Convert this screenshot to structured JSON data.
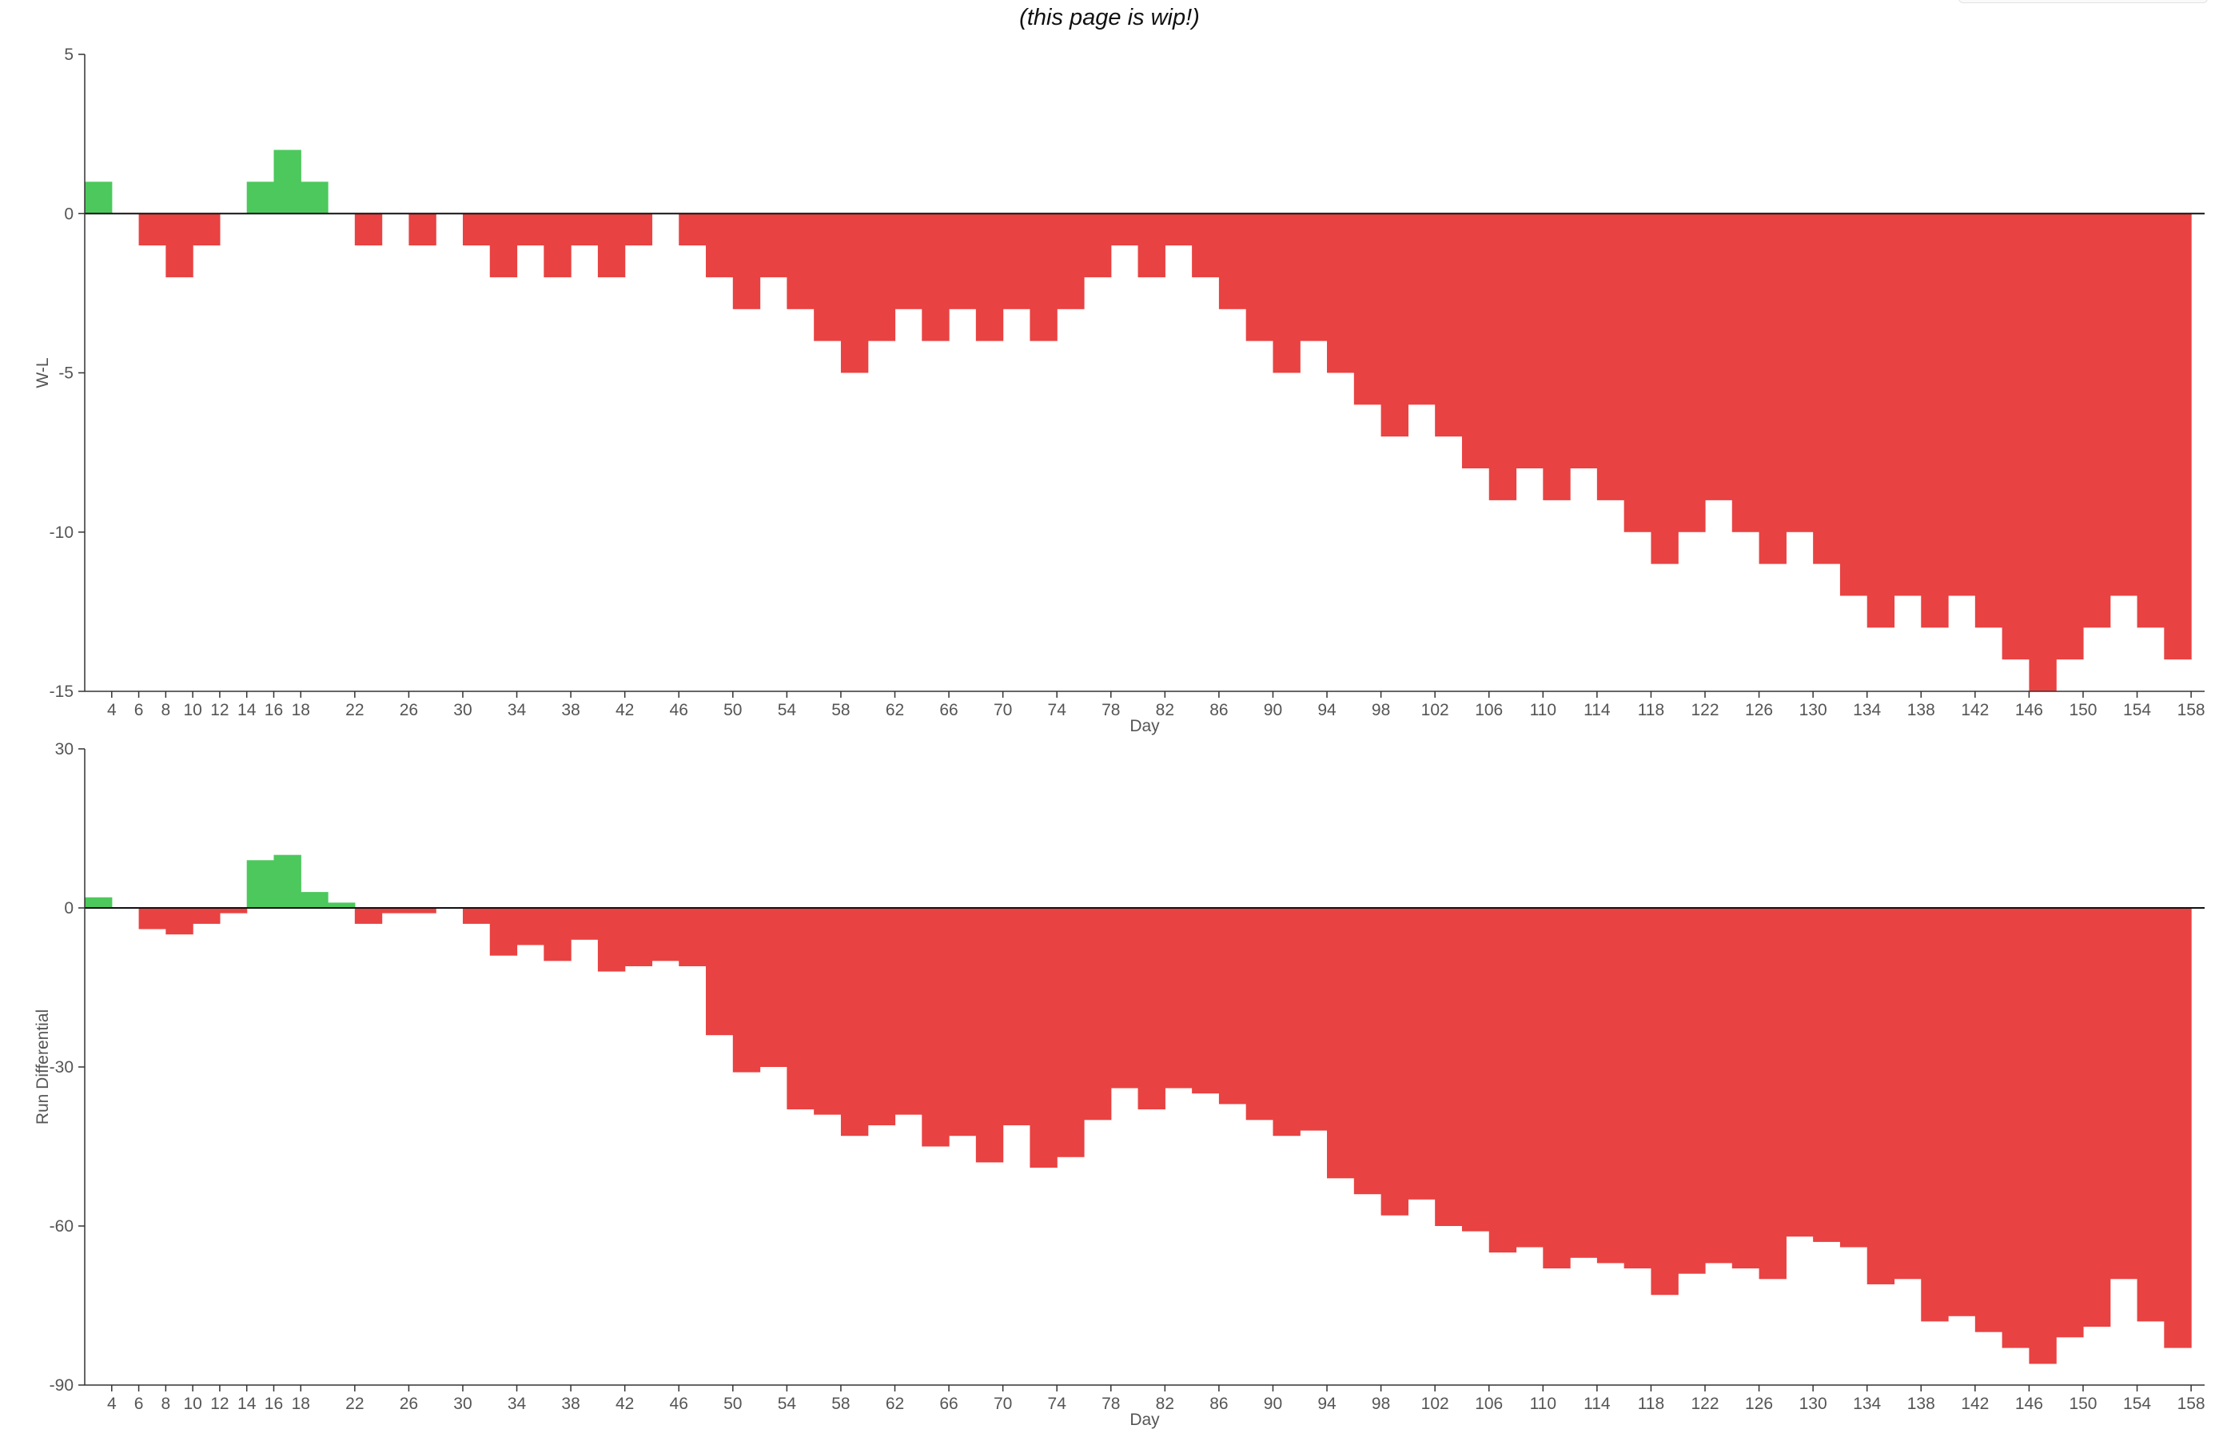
{
  "page": {
    "note": "(this page is wip!)"
  },
  "colors": {
    "positive": "#4cc85c",
    "negative": "#e84242",
    "axis": "#333333",
    "zero_line": "#111111"
  },
  "chart_data": [
    {
      "id": "wl",
      "type": "bar",
      "title": "",
      "xlabel": "Day",
      "ylabel": "W-L",
      "ylim": [
        -15,
        5
      ],
      "yticks": [
        5,
        0,
        -5,
        -10,
        -15
      ],
      "x_tick_labels": [
        4,
        6,
        8,
        10,
        12,
        14,
        16,
        18,
        22,
        26,
        30,
        34,
        38,
        42,
        46,
        50,
        54,
        58,
        62,
        66,
        70,
        74,
        78,
        82,
        86,
        90,
        94,
        98,
        102,
        106,
        110,
        114,
        118,
        122,
        126,
        130,
        134,
        138,
        142,
        146,
        150,
        154,
        158
      ],
      "x": [
        3,
        5,
        7,
        9,
        11,
        13,
        15,
        17,
        19,
        21,
        23,
        25,
        27,
        29,
        31,
        33,
        35,
        37,
        39,
        41,
        43,
        45,
        47,
        49,
        51,
        53,
        55,
        57,
        59,
        61,
        63,
        65,
        67,
        69,
        71,
        73,
        75,
        77,
        79,
        81,
        83,
        85,
        87,
        89,
        91,
        93,
        95,
        97,
        99,
        101,
        103,
        105,
        107,
        109,
        111,
        113,
        115,
        117,
        119,
        121,
        123,
        125,
        127,
        129,
        131,
        133,
        135,
        137,
        139,
        141,
        143,
        145,
        147,
        149,
        151,
        153,
        155,
        157
      ],
      "values": [
        1,
        0,
        -1,
        -2,
        -1,
        0,
        1,
        2,
        1,
        0,
        -1,
        0,
        -1,
        0,
        -1,
        -2,
        -1,
        -2,
        -1,
        -2,
        -1,
        0,
        -1,
        -2,
        -3,
        -2,
        -3,
        -4,
        -5,
        -4,
        -3,
        -4,
        -3,
        -4,
        -3,
        -4,
        -3,
        -2,
        -1,
        -2,
        -1,
        -2,
        -3,
        -4,
        -5,
        -4,
        -5,
        -6,
        -7,
        -6,
        -7,
        -8,
        -9,
        -8,
        -9,
        -8,
        -9,
        -10,
        -11,
        -10,
        -9,
        -10,
        -11,
        -10,
        -11,
        -12,
        -13,
        -12,
        -13,
        -12,
        -13,
        -14,
        -15,
        -14,
        -13,
        -12,
        -13,
        -14
      ]
    },
    {
      "id": "rd",
      "type": "bar",
      "title": "",
      "xlabel": "Day",
      "ylabel": "Run Differential",
      "ylim": [
        -90,
        30
      ],
      "yticks": [
        30,
        0,
        -30,
        -60,
        -90
      ],
      "x_tick_labels": [
        4,
        6,
        8,
        10,
        12,
        14,
        16,
        18,
        22,
        26,
        30,
        34,
        38,
        42,
        46,
        50,
        54,
        58,
        62,
        66,
        70,
        74,
        78,
        82,
        86,
        90,
        94,
        98,
        102,
        106,
        110,
        114,
        118,
        122,
        126,
        130,
        134,
        138,
        142,
        146,
        150,
        154,
        158
      ],
      "x": [
        3,
        5,
        7,
        9,
        11,
        13,
        15,
        17,
        19,
        21,
        23,
        25,
        27,
        29,
        31,
        33,
        35,
        37,
        39,
        41,
        43,
        45,
        47,
        49,
        51,
        53,
        55,
        57,
        59,
        61,
        63,
        65,
        67,
        69,
        71,
        73,
        75,
        77,
        79,
        81,
        83,
        85,
        87,
        89,
        91,
        93,
        95,
        97,
        99,
        101,
        103,
        105,
        107,
        109,
        111,
        113,
        115,
        117,
        119,
        121,
        123,
        125,
        127,
        129,
        131,
        133,
        135,
        137,
        139,
        141,
        143,
        145,
        147,
        149,
        151,
        153,
        155,
        157
      ],
      "values": [
        2,
        0,
        -4,
        -5,
        -3,
        -1,
        9,
        10,
        3,
        1,
        -3,
        -1,
        -1,
        0,
        -3,
        -9,
        -7,
        -10,
        -6,
        -12,
        -11,
        -10,
        -11,
        -24,
        -31,
        -30,
        -38,
        -39,
        -43,
        -41,
        -39,
        -45,
        -43,
        -48,
        -41,
        -49,
        -47,
        -40,
        -34,
        -38,
        -34,
        -35,
        -37,
        -40,
        -43,
        -42,
        -51,
        -54,
        -58,
        -55,
        -60,
        -61,
        -65,
        -64,
        -68,
        -66,
        -67,
        -68,
        -73,
        -69,
        -67,
        -68,
        -70,
        -62,
        -63,
        -64,
        -71,
        -70,
        -78,
        -77,
        -80,
        -83,
        -86,
        -81,
        -79,
        -70,
        -78,
        -83
      ]
    }
  ]
}
